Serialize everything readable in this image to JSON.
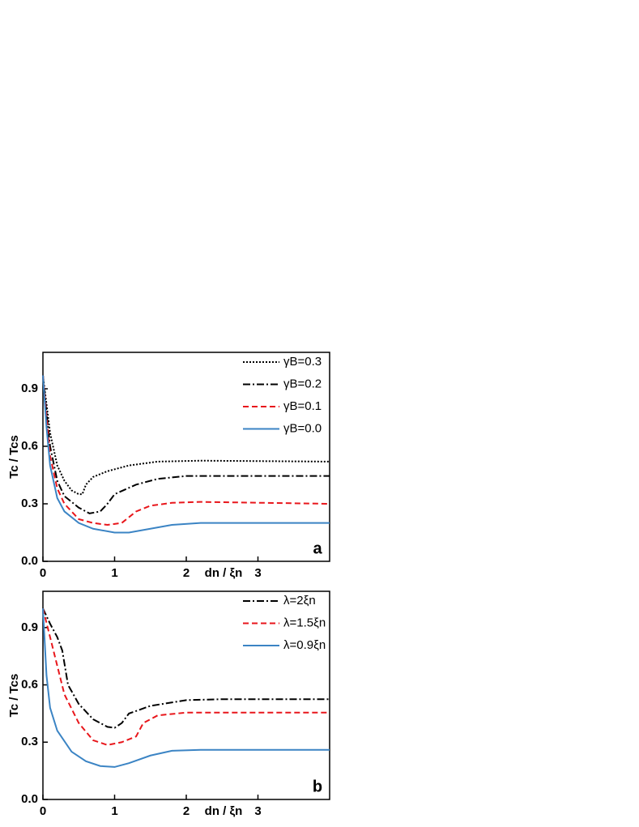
{
  "chart_data": [
    {
      "type": "line",
      "annotation": "a",
      "xlabel": "dn / ξn",
      "ylabel": "Tc / Tcs",
      "xlim": [
        0,
        4
      ],
      "ylim": [
        0,
        1.09
      ],
      "xticks": [
        0,
        1,
        2,
        3
      ],
      "yticks": [
        {
          "value": 0,
          "label": "0.0"
        },
        0.3,
        0.6,
        0.9
      ],
      "series": [
        {
          "name": "γB=0.3",
          "color": "#000000",
          "style": "dotted",
          "x": [
            0,
            0.05,
            0.1,
            0.2,
            0.3,
            0.4,
            0.5,
            0.55,
            0.6,
            0.7,
            0.9,
            1.2,
            1.6,
            2.2,
            4
          ],
          "values": [
            0.97,
            0.82,
            0.67,
            0.5,
            0.42,
            0.37,
            0.35,
            0.35,
            0.4,
            0.44,
            0.47,
            0.5,
            0.52,
            0.525,
            0.52
          ]
        },
        {
          "name": "γB=0.2",
          "color": "#000000",
          "style": "dashdot",
          "x": [
            0,
            0.05,
            0.1,
            0.2,
            0.3,
            0.5,
            0.65,
            0.8,
            0.9,
            1.0,
            1.3,
            1.6,
            2,
            4
          ],
          "values": [
            0.97,
            0.78,
            0.6,
            0.42,
            0.34,
            0.28,
            0.25,
            0.26,
            0.3,
            0.35,
            0.4,
            0.43,
            0.445,
            0.445
          ]
        },
        {
          "name": "γB=0.1",
          "color": "#e8161b",
          "style": "dashed",
          "x": [
            0,
            0.05,
            0.1,
            0.2,
            0.3,
            0.5,
            0.7,
            0.9,
            1.1,
            1.3,
            1.5,
            1.8,
            2.2,
            4
          ],
          "values": [
            0.97,
            0.75,
            0.55,
            0.38,
            0.3,
            0.22,
            0.2,
            0.19,
            0.2,
            0.26,
            0.29,
            0.305,
            0.31,
            0.3
          ]
        },
        {
          "name": "γB=0.0",
          "color": "#3b84c4",
          "style": "solid",
          "x": [
            0,
            0.05,
            0.1,
            0.2,
            0.3,
            0.5,
            0.7,
            1.0,
            1.2,
            1.5,
            1.8,
            2.2,
            4
          ],
          "values": [
            0.97,
            0.7,
            0.5,
            0.33,
            0.26,
            0.2,
            0.17,
            0.15,
            0.15,
            0.17,
            0.19,
            0.2,
            0.2
          ]
        }
      ]
    },
    {
      "type": "line",
      "annotation": "b",
      "xlabel": "dn / ξn",
      "ylabel": "Tc / Tcs",
      "xlim": [
        0,
        4
      ],
      "ylim": [
        0,
        1.09
      ],
      "xticks": [
        0,
        1,
        2,
        3
      ],
      "yticks": [
        {
          "value": 0,
          "label": "0.0"
        },
        0.3,
        0.6,
        0.9
      ],
      "series": [
        {
          "name": "λ=2ξn",
          "color": "#000000",
          "style": "dashdot",
          "x": [
            0,
            0.1,
            0.2,
            0.27,
            0.35,
            0.5,
            0.7,
            0.9,
            1.0,
            1.1,
            1.2,
            1.5,
            2,
            2.5,
            4
          ],
          "values": [
            1.0,
            0.92,
            0.85,
            0.78,
            0.6,
            0.5,
            0.42,
            0.38,
            0.375,
            0.4,
            0.45,
            0.49,
            0.52,
            0.525,
            0.525
          ]
        },
        {
          "name": "λ=1.5ξn",
          "color": "#e8161b",
          "style": "dashed",
          "x": [
            0,
            0.1,
            0.2,
            0.3,
            0.5,
            0.7,
            0.9,
            1.1,
            1.3,
            1.4,
            1.6,
            2,
            4
          ],
          "values": [
            1.0,
            0.85,
            0.7,
            0.55,
            0.4,
            0.31,
            0.285,
            0.3,
            0.33,
            0.4,
            0.44,
            0.455,
            0.455
          ]
        },
        {
          "name": "λ=0.9ξn",
          "color": "#3b84c4",
          "style": "solid",
          "x": [
            0,
            0.05,
            0.1,
            0.2,
            0.4,
            0.6,
            0.8,
            1.0,
            1.2,
            1.5,
            1.8,
            2.2,
            4
          ],
          "values": [
            1.0,
            0.65,
            0.48,
            0.36,
            0.25,
            0.2,
            0.175,
            0.17,
            0.19,
            0.23,
            0.255,
            0.26,
            0.26
          ]
        }
      ]
    }
  ]
}
